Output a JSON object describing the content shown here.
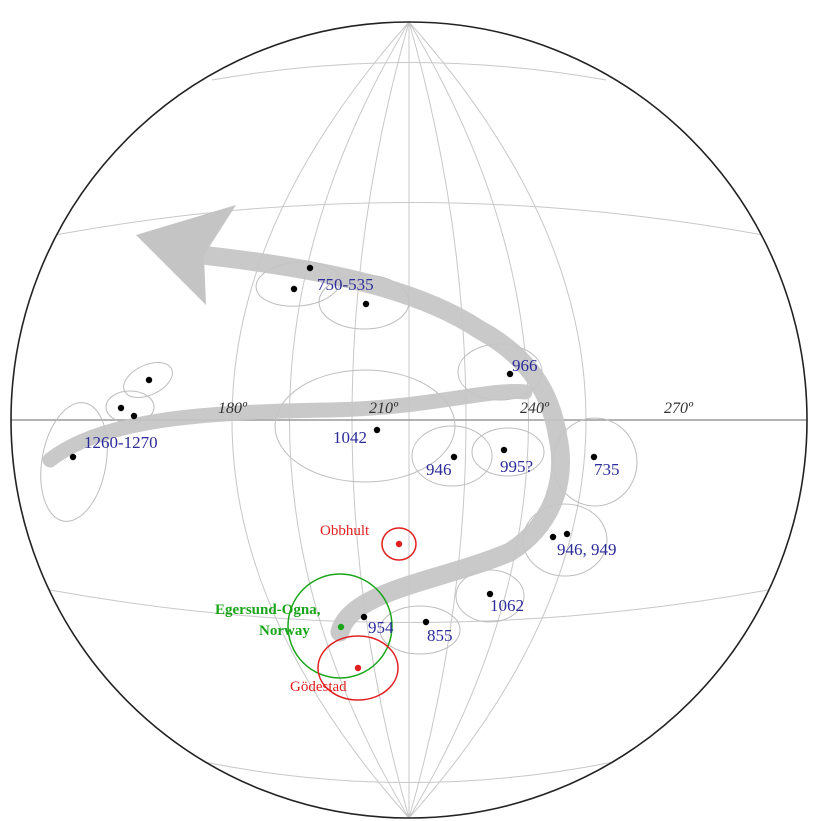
{
  "colors": {
    "background": "#ffffff",
    "grid": "#c8c8c8",
    "confidence_ellipse": "#bdbdbd",
    "path_band": "#c4c4c4",
    "sample_point": "#000000",
    "date_label": "#2b2b9a",
    "reference_red": "#e02020",
    "reference_green": "#1aa51a"
  },
  "azimuth_labels": [
    "180º",
    "210º",
    "240º",
    "270º"
  ],
  "date_labels": [
    "750-535",
    "966",
    "1260-1270",
    "1042",
    "946",
    "995?",
    "735",
    "946, 949",
    "954",
    "855",
    "1062"
  ],
  "reference_sites": [
    {
      "name": "Obbhult",
      "color": "#e02020"
    },
    {
      "name": "Egersund-Ogna,",
      "name_line2": "Norway",
      "color": "#1aa51a"
    },
    {
      "name": "Gödestad",
      "color": "#e02020"
    }
  ]
}
